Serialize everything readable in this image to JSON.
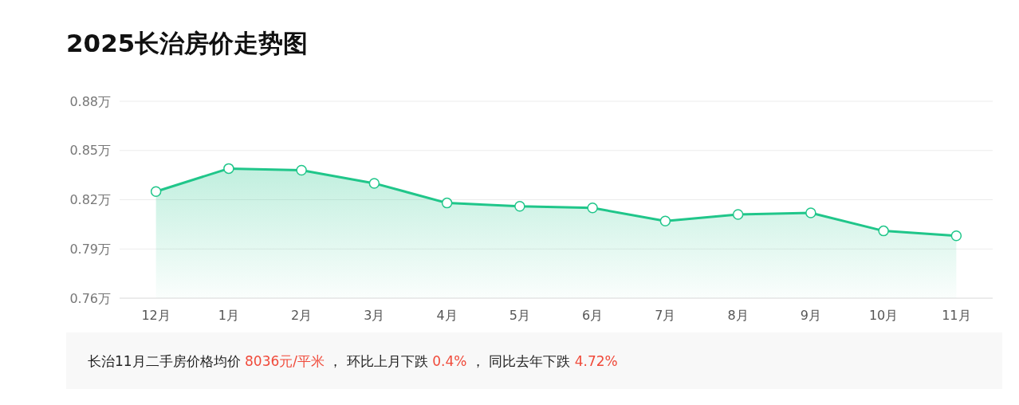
{
  "chart_data": {
    "type": "area",
    "title": "2025长治房价走势图",
    "categories": [
      "12月",
      "1月",
      "2月",
      "3月",
      "4月",
      "5月",
      "6月",
      "7月",
      "8月",
      "9月",
      "10月",
      "11月"
    ],
    "series": [
      {
        "color": "#20c68a",
        "values": [
          0.825,
          0.839,
          0.838,
          0.83,
          0.818,
          0.816,
          0.815,
          0.807,
          0.811,
          0.812,
          0.801,
          0.798
        ]
      }
    ],
    "ylim": [
      0.76,
      0.88
    ],
    "yticks": [
      {
        "value": 0.76,
        "label": "0.76万"
      },
      {
        "value": 0.79,
        "label": "0.79万"
      },
      {
        "value": 0.82,
        "label": "0.82万"
      },
      {
        "value": 0.85,
        "label": "0.85万"
      },
      {
        "value": 0.88,
        "label": "0.88万"
      }
    ],
    "grid": "y",
    "marker": "circle",
    "annotations": [
      "长治11月二手房价格均价 ",
      "8036元/平米",
      " ， 环比上月下跌 ",
      "0.4%",
      " ， 同比去年下跌 ",
      "4.72%"
    ]
  }
}
